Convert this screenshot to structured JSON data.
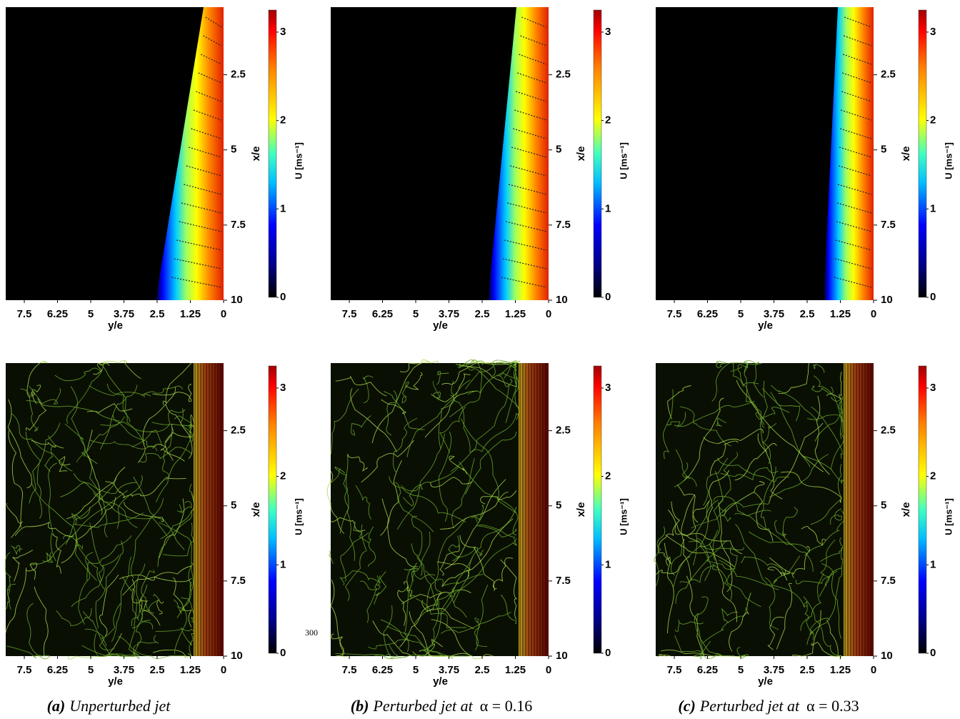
{
  "chart_data": [
    {
      "type": "heatmap",
      "xlabel": "y/e",
      "ylabel": "x/e",
      "xlim": [
        8.2,
        0
      ],
      "xticks": [
        7.5,
        6.25,
        5,
        3.75,
        2.5,
        1.25,
        0
      ],
      "ylim": [
        0.25,
        10
      ],
      "yticks": [
        2.5,
        5,
        7.5,
        10
      ],
      "colorbar": {
        "label": "U [ms⁻¹]",
        "clim": [
          0,
          3.25
        ],
        "ticks": [
          0,
          1,
          2,
          3
        ],
        "colormap": "jet"
      }
    },
    {
      "type": "heatmap",
      "xlabel": "y/e",
      "ylabel": "x/e",
      "xlim": [
        8.2,
        0
      ],
      "xticks": [
        7.5,
        6.25,
        5,
        3.75,
        2.5,
        1.25,
        0
      ],
      "ylim": [
        0.25,
        10
      ],
      "yticks": [
        2.5,
        5,
        7.5,
        10
      ],
      "colorbar": {
        "label": "U [ms⁻¹]",
        "clim": [
          0,
          3.25
        ],
        "ticks": [
          0,
          1,
          2,
          3
        ],
        "colormap": "jet"
      }
    },
    {
      "type": "heatmap",
      "xlabel": "y/e",
      "ylabel": "x/e",
      "xlim": [
        8.2,
        0
      ],
      "xticks": [
        7.5,
        6.25,
        5,
        3.75,
        2.5,
        1.25,
        0
      ],
      "ylim": [
        0.25,
        10
      ],
      "yticks": [
        2.5,
        5,
        7.5,
        10
      ],
      "colorbar": {
        "label": "U [ms⁻¹]",
        "clim": [
          0,
          3.25
        ],
        "ticks": [
          0,
          1,
          2,
          3
        ],
        "colormap": "jet"
      }
    },
    {
      "type": "streamplot",
      "xlabel": "y/e",
      "ylabel": "x/e",
      "xlim": [
        8.2,
        0
      ],
      "xticks": [
        7.5,
        6.25,
        5,
        3.75,
        2.5,
        1.25,
        0
      ],
      "ylim": [
        0.25,
        10
      ],
      "yticks": [
        2.5,
        5,
        7.5,
        10
      ],
      "colorbar": {
        "label": "U [ms⁻¹]",
        "clim": [
          0,
          3.25
        ],
        "ticks": [
          0,
          1,
          2,
          3
        ],
        "colormap": "jet"
      }
    },
    {
      "type": "streamplot",
      "xlabel": "y/e",
      "ylabel": "x/e",
      "xlim": [
        8.2,
        0
      ],
      "xticks": [
        7.5,
        6.25,
        5,
        3.75,
        2.5,
        1.25,
        0
      ],
      "ylim": [
        0.25,
        10
      ],
      "yticks": [
        2.5,
        5,
        7.5,
        10
      ],
      "colorbar": {
        "label": "U [ms⁻¹]",
        "clim": [
          0,
          3.25
        ],
        "ticks": [
          0,
          1,
          2,
          3
        ],
        "colormap": "jet"
      }
    },
    {
      "type": "streamplot",
      "xlabel": "y/e",
      "ylabel": "x/e",
      "xlim": [
        8.2,
        0
      ],
      "xticks": [
        7.5,
        6.25,
        5,
        3.75,
        2.5,
        1.25,
        0
      ],
      "ylim": [
        0.25,
        10
      ],
      "yticks": [
        2.5,
        5,
        7.5,
        10
      ],
      "colorbar": {
        "label": "U [ms⁻¹]",
        "clim": [
          0,
          3.25
        ],
        "ticks": [
          0,
          1,
          2,
          3
        ],
        "colormap": "jet"
      }
    }
  ],
  "captions": [
    {
      "tag": "(a)",
      "text": "Unperturbed jet"
    },
    {
      "tag": "(b)",
      "text": "Perturbed jet at",
      "param": "α = 0.16"
    },
    {
      "tag": "(c)",
      "text": "Perturbed jet at",
      "param": "α = 0.33"
    }
  ],
  "annotation": "300"
}
